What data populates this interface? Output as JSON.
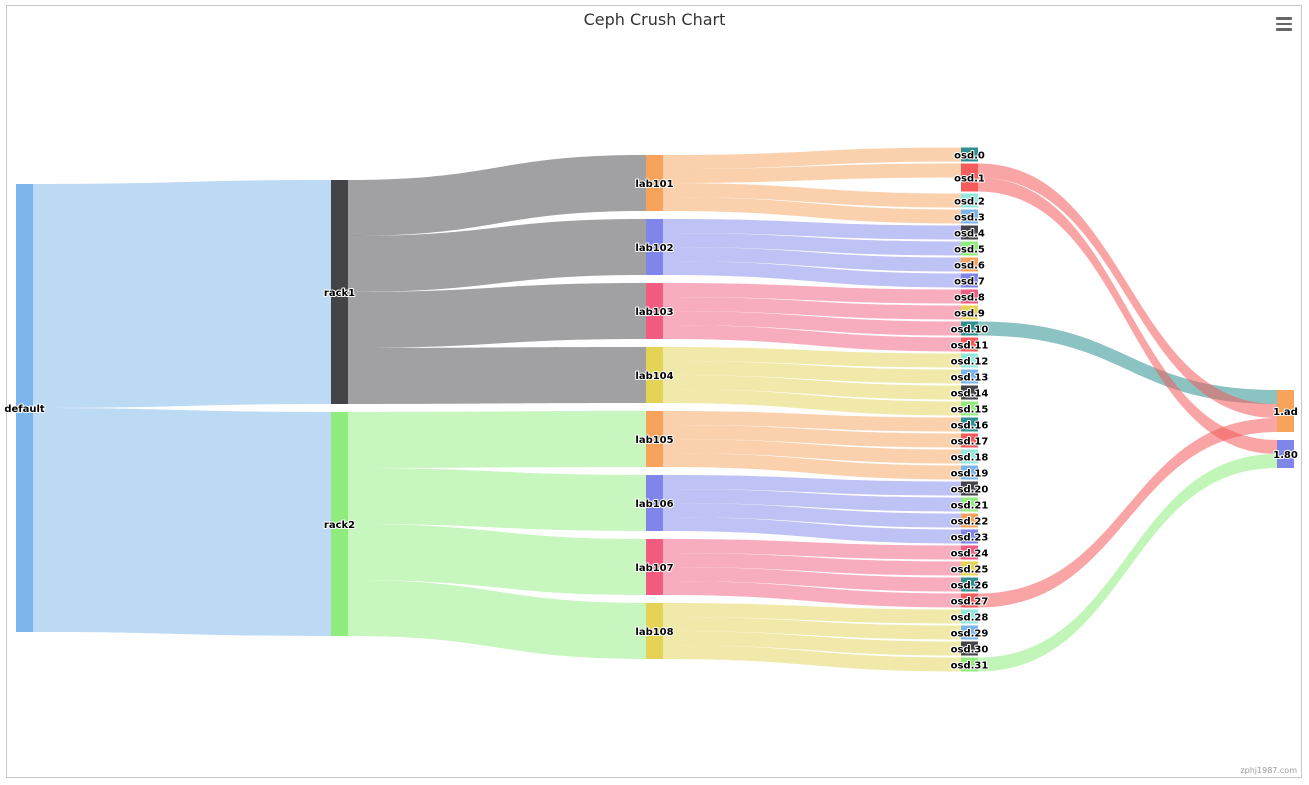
{
  "chart_title": "Ceph Crush Chart",
  "credit": "zphj1987.com",
  "menu_icon": "hamburger-menu-icon",
  "chart_data": {
    "type": "sankey",
    "title": "Ceph Crush Chart",
    "nodes": [
      {
        "id": "default",
        "label": "default",
        "color": "#7cb5ec"
      },
      {
        "id": "rack1",
        "label": "rack1",
        "color": "#434348"
      },
      {
        "id": "rack2",
        "label": "rack2",
        "color": "#90ed7d"
      },
      {
        "id": "lab101",
        "label": "lab101",
        "color": "#f7a35c"
      },
      {
        "id": "lab102",
        "label": "lab102",
        "color": "#8085e9"
      },
      {
        "id": "lab103",
        "label": "lab103",
        "color": "#f15c80"
      },
      {
        "id": "lab104",
        "label": "lab104",
        "color": "#e4d354"
      },
      {
        "id": "lab105",
        "label": "lab105",
        "color": "#f7a35c"
      },
      {
        "id": "lab106",
        "label": "lab106",
        "color": "#8085e9"
      },
      {
        "id": "lab107",
        "label": "lab107",
        "color": "#f15c80"
      },
      {
        "id": "lab108",
        "label": "lab108",
        "color": "#e4d354"
      },
      {
        "id": "osd.0",
        "label": "osd.0",
        "color": "#2b908f"
      },
      {
        "id": "osd.1",
        "label": "osd.1",
        "color": "#f45b5b"
      },
      {
        "id": "osd.2",
        "label": "osd.2",
        "color": "#91e8e1"
      },
      {
        "id": "osd.3",
        "label": "osd.3",
        "color": "#7cb5ec"
      },
      {
        "id": "osd.4",
        "label": "osd.4",
        "color": "#434348"
      },
      {
        "id": "osd.5",
        "label": "osd.5",
        "color": "#90ed7d"
      },
      {
        "id": "osd.6",
        "label": "osd.6",
        "color": "#f7a35c"
      },
      {
        "id": "osd.7",
        "label": "osd.7",
        "color": "#8085e9"
      },
      {
        "id": "osd.8",
        "label": "osd.8",
        "color": "#f15c80"
      },
      {
        "id": "osd.9",
        "label": "osd.9",
        "color": "#e4d354"
      },
      {
        "id": "osd.10",
        "label": "osd.10",
        "color": "#2b908f"
      },
      {
        "id": "osd.11",
        "label": "osd.11",
        "color": "#f45b5b"
      },
      {
        "id": "osd.12",
        "label": "osd.12",
        "color": "#91e8e1"
      },
      {
        "id": "osd.13",
        "label": "osd.13",
        "color": "#7cb5ec"
      },
      {
        "id": "osd.14",
        "label": "osd.14",
        "color": "#434348"
      },
      {
        "id": "osd.15",
        "label": "osd.15",
        "color": "#90ed7d"
      },
      {
        "id": "osd.16",
        "label": "osd.16",
        "color": "#2b908f"
      },
      {
        "id": "osd.17",
        "label": "osd.17",
        "color": "#f45b5b"
      },
      {
        "id": "osd.18",
        "label": "osd.18",
        "color": "#91e8e1"
      },
      {
        "id": "osd.19",
        "label": "osd.19",
        "color": "#7cb5ec"
      },
      {
        "id": "osd.20",
        "label": "osd.20",
        "color": "#434348"
      },
      {
        "id": "osd.21",
        "label": "osd.21",
        "color": "#90ed7d"
      },
      {
        "id": "osd.22",
        "label": "osd.22",
        "color": "#f7a35c"
      },
      {
        "id": "osd.23",
        "label": "osd.23",
        "color": "#8085e9"
      },
      {
        "id": "osd.24",
        "label": "osd.24",
        "color": "#f15c80"
      },
      {
        "id": "osd.25",
        "label": "osd.25",
        "color": "#e4d354"
      },
      {
        "id": "osd.26",
        "label": "osd.26",
        "color": "#2b908f"
      },
      {
        "id": "osd.27",
        "label": "osd.27",
        "color": "#f45b5b"
      },
      {
        "id": "osd.28",
        "label": "osd.28",
        "color": "#91e8e1"
      },
      {
        "id": "osd.29",
        "label": "osd.29",
        "color": "#7cb5ec"
      },
      {
        "id": "osd.30",
        "label": "osd.30",
        "color": "#434348"
      },
      {
        "id": "osd.31",
        "label": "osd.31",
        "color": "#90ed7d"
      },
      {
        "id": "1.ad",
        "label": "1.ad",
        "color": "#f7a35c"
      },
      {
        "id": "1.80",
        "label": "1.80",
        "color": "#8085e9"
      }
    ],
    "links": [
      {
        "from": "default",
        "to": "rack1",
        "weight": 16
      },
      {
        "from": "default",
        "to": "rack2",
        "weight": 16
      },
      {
        "from": "rack1",
        "to": "lab101",
        "weight": 4
      },
      {
        "from": "rack1",
        "to": "lab102",
        "weight": 4
      },
      {
        "from": "rack1",
        "to": "lab103",
        "weight": 4
      },
      {
        "from": "rack1",
        "to": "lab104",
        "weight": 4
      },
      {
        "from": "rack2",
        "to": "lab105",
        "weight": 4
      },
      {
        "from": "rack2",
        "to": "lab106",
        "weight": 4
      },
      {
        "from": "rack2",
        "to": "lab107",
        "weight": 4
      },
      {
        "from": "rack2",
        "to": "lab108",
        "weight": 4
      },
      {
        "from": "lab101",
        "to": "osd.0",
        "weight": 1
      },
      {
        "from": "lab101",
        "to": "osd.1",
        "weight": 1
      },
      {
        "from": "lab101",
        "to": "osd.2",
        "weight": 1
      },
      {
        "from": "lab101",
        "to": "osd.3",
        "weight": 1
      },
      {
        "from": "lab102",
        "to": "osd.4",
        "weight": 1
      },
      {
        "from": "lab102",
        "to": "osd.5",
        "weight": 1
      },
      {
        "from": "lab102",
        "to": "osd.6",
        "weight": 1
      },
      {
        "from": "lab102",
        "to": "osd.7",
        "weight": 1
      },
      {
        "from": "lab103",
        "to": "osd.8",
        "weight": 1
      },
      {
        "from": "lab103",
        "to": "osd.9",
        "weight": 1
      },
      {
        "from": "lab103",
        "to": "osd.10",
        "weight": 1
      },
      {
        "from": "lab103",
        "to": "osd.11",
        "weight": 1
      },
      {
        "from": "lab104",
        "to": "osd.12",
        "weight": 1
      },
      {
        "from": "lab104",
        "to": "osd.13",
        "weight": 1
      },
      {
        "from": "lab104",
        "to": "osd.14",
        "weight": 1
      },
      {
        "from": "lab104",
        "to": "osd.15",
        "weight": 1
      },
      {
        "from": "lab105",
        "to": "osd.16",
        "weight": 1
      },
      {
        "from": "lab105",
        "to": "osd.17",
        "weight": 1
      },
      {
        "from": "lab105",
        "to": "osd.18",
        "weight": 1
      },
      {
        "from": "lab105",
        "to": "osd.19",
        "weight": 1
      },
      {
        "from": "lab106",
        "to": "osd.20",
        "weight": 1
      },
      {
        "from": "lab106",
        "to": "osd.21",
        "weight": 1
      },
      {
        "from": "lab106",
        "to": "osd.22",
        "weight": 1
      },
      {
        "from": "lab106",
        "to": "osd.23",
        "weight": 1
      },
      {
        "from": "lab107",
        "to": "osd.24",
        "weight": 1
      },
      {
        "from": "lab107",
        "to": "osd.25",
        "weight": 1
      },
      {
        "from": "lab107",
        "to": "osd.26",
        "weight": 1
      },
      {
        "from": "lab107",
        "to": "osd.27",
        "weight": 1
      },
      {
        "from": "lab108",
        "to": "osd.28",
        "weight": 1
      },
      {
        "from": "lab108",
        "to": "osd.29",
        "weight": 1
      },
      {
        "from": "lab108",
        "to": "osd.30",
        "weight": 1
      },
      {
        "from": "lab108",
        "to": "osd.31",
        "weight": 1
      },
      {
        "from": "osd.10",
        "to": "1.ad",
        "weight": 1
      },
      {
        "from": "osd.1",
        "to": "1.ad",
        "weight": 1
      },
      {
        "from": "osd.1",
        "to": "1.80",
        "weight": 1
      },
      {
        "from": "osd.27",
        "to": "1.ad",
        "weight": 1
      },
      {
        "from": "osd.31",
        "to": "1.80",
        "weight": 1
      }
    ]
  }
}
